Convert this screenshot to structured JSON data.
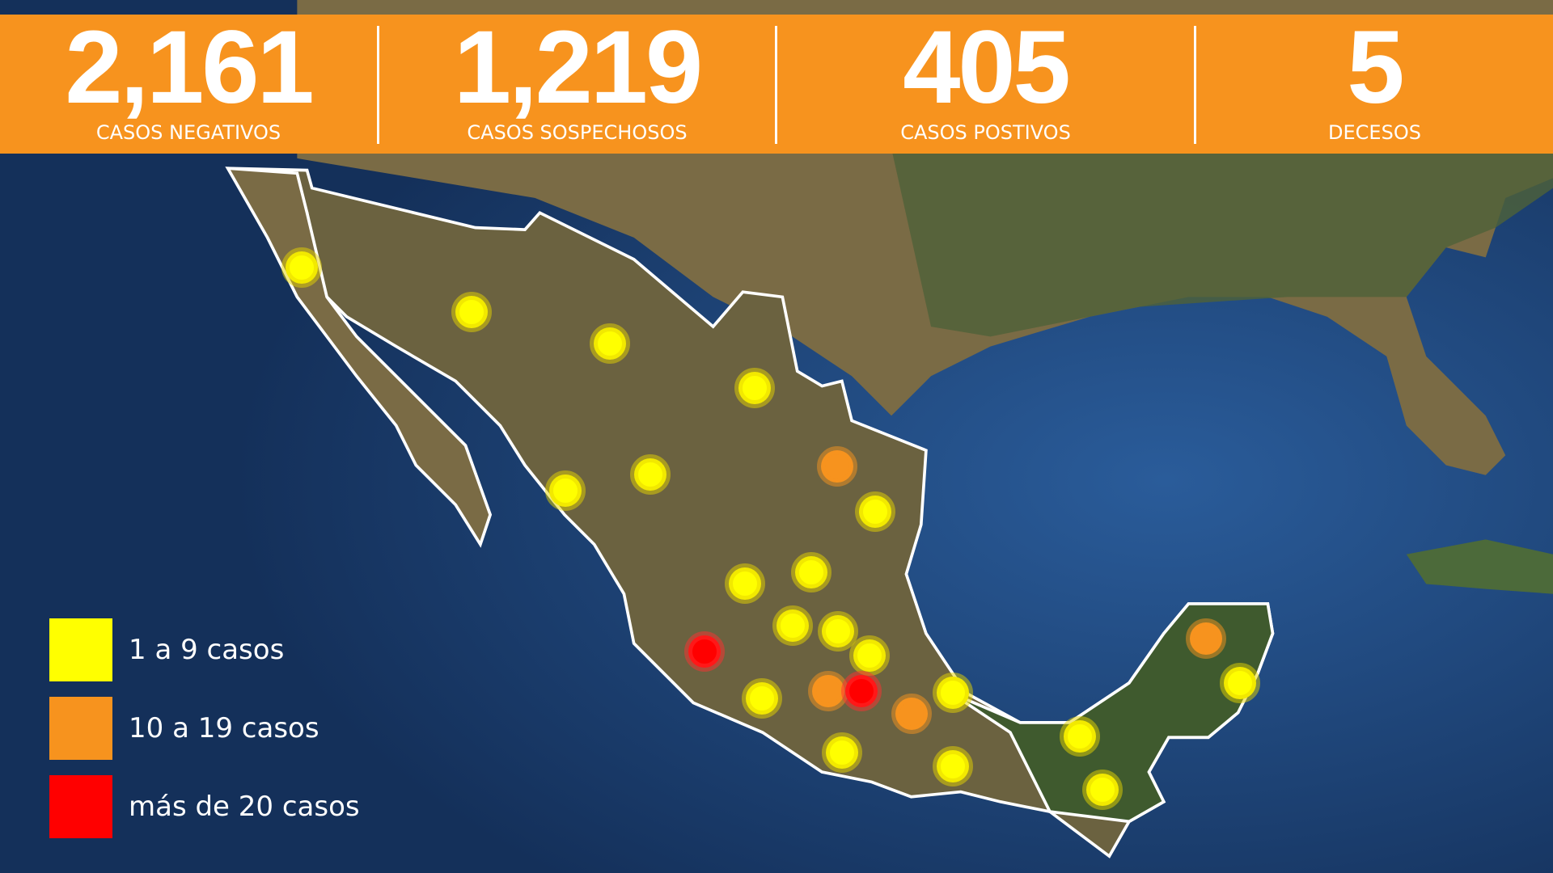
{
  "header": {
    "stats": [
      {
        "number": "2,161",
        "label": "CASOS NEGATIVOS"
      },
      {
        "number": "1,219",
        "label": "CASOS SOSPECHOSOS"
      },
      {
        "number": "405",
        "label": "CASOS POSTIVOS"
      },
      {
        "number": "5",
        "label": "DECESOS"
      }
    ]
  },
  "legend": {
    "items": [
      {
        "label": "1 a 9 casos",
        "color": "#ffff00"
      },
      {
        "label": "10 a 19 casos",
        "color": "#f7931e"
      },
      {
        "label": "más de 20 casos",
        "color": "#ff0000"
      }
    ]
  }
}
